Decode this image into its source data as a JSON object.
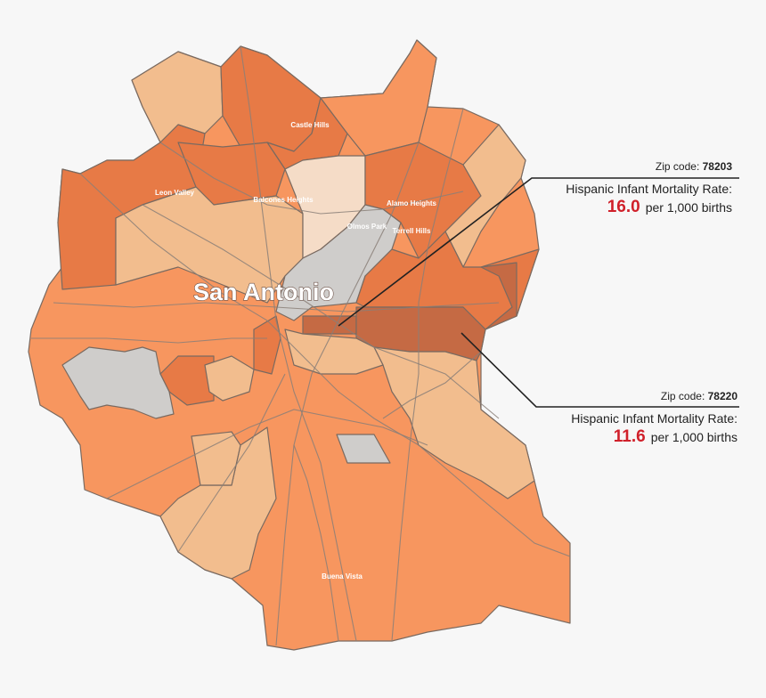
{
  "city_label": "San Antonio",
  "place_labels": [
    "Castle Hills",
    "Leon Valley",
    "Balcones Heights",
    "Alamo Heights",
    "Olmos Park",
    "Terrell Hills",
    "Buena Vista"
  ],
  "callouts": [
    {
      "zip_prefix": "Zip code:",
      "zip_code": "78203",
      "rate_label": "Hispanic Infant Mortality Rate:",
      "rate_value": "16.0",
      "rate_unit": "per 1,000 births"
    },
    {
      "zip_prefix": "Zip code:",
      "zip_code": "78220",
      "rate_label": "Hispanic Infant Mortality Rate:",
      "rate_value": "11.6",
      "rate_unit": "per 1,000 births"
    }
  ],
  "colors": {
    "background": "#f7f7f7",
    "highlight_red": "#d0202a",
    "shade_lightest": "#f5dcc7",
    "shade_light": "#f2bd8e",
    "shade_medium": "#f7965f",
    "shade_dark": "#e77a46",
    "shade_darkest": "#c56a44",
    "no_data_gray": "#cfcdcb"
  }
}
